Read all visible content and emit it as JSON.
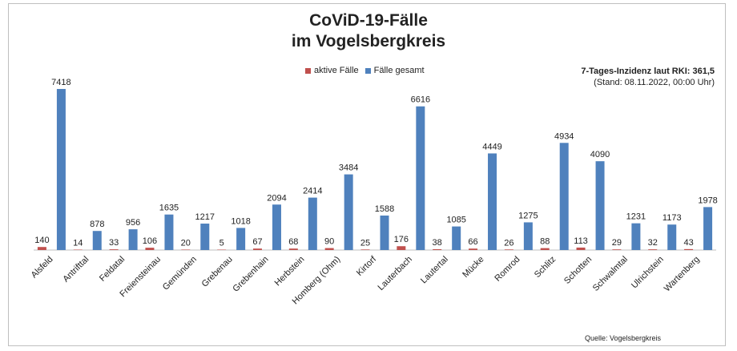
{
  "chart_data": {
    "type": "bar",
    "title": "CoViD-19-Fälle",
    "subtitle": "im Vogelsbergkreis",
    "categories": [
      "Alsfeld",
      "Antrifttal",
      "Feldatal",
      "Freiensteinau",
      "Gemünden",
      "Grebenau",
      "Grebenhain",
      "Herbstein",
      "Homberg (Ohm)",
      "Kirtorf",
      "Lauterbach",
      "Lautertal",
      "Mücke",
      "Romrod",
      "Schlitz",
      "Schotten",
      "Schwalmtal",
      "Ulrichstein",
      "Wartenberg"
    ],
    "series": [
      {
        "name": "aktive Fälle",
        "color": "#c0504d",
        "values": [
          140,
          14,
          33,
          106,
          20,
          5,
          67,
          68,
          90,
          25,
          176,
          38,
          66,
          26,
          88,
          113,
          29,
          32,
          43
        ]
      },
      {
        "name": "Fälle gesamt",
        "color": "#4f81bd",
        "values": [
          7418,
          878,
          956,
          1635,
          1217,
          1018,
          2094,
          2414,
          3484,
          1588,
          6616,
          1085,
          4449,
          1275,
          4934,
          4090,
          1231,
          1173,
          1978
        ]
      }
    ],
    "ylim": [
      0,
      7418
    ],
    "grid": false,
    "legend_position": "top-center",
    "annotations": {
      "incidence": "7-Tages-Inzidenz laut RKI: 361,5",
      "stand": "(Stand: 08.11.2022, 00:00 Uhr)",
      "source": "Quelle: Vogelsbergkreis"
    }
  }
}
